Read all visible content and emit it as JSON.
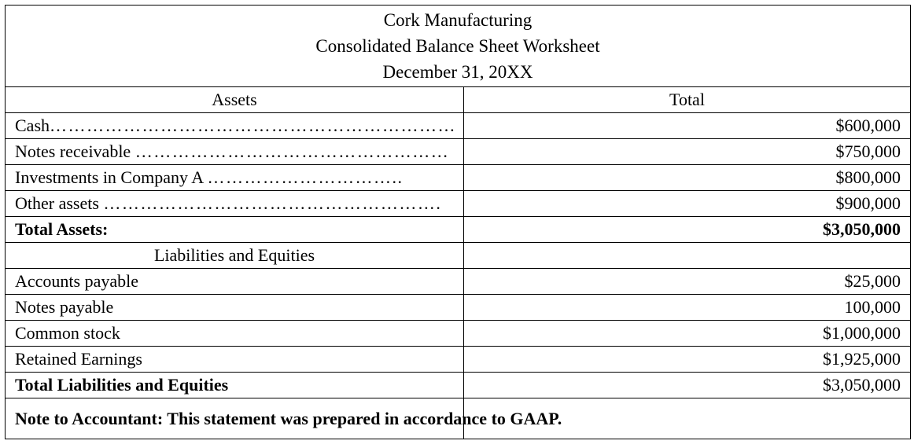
{
  "header": {
    "company": "Cork Manufacturing",
    "statement": "Consolidated  Balance Sheet Worksheet",
    "date": "December 31, 20XX"
  },
  "columns": {
    "label": "Assets",
    "total": "Total"
  },
  "assets": [
    {
      "label": "Cash",
      "leader": "…………………………………………………………",
      "value": "$600,000"
    },
    {
      "label": "Notes receivable ",
      "leader": "……………………………………………",
      "value": "$750,000"
    },
    {
      "label": "Investments in Company A ",
      "leader": "…………………………..",
      "value": "$800,000"
    },
    {
      "label": "Other assets ",
      "leader": "……………………………………………….",
      "value": "$900,000"
    }
  ],
  "total_assets": {
    "label": "Total Assets:",
    "value": "$3,050,000"
  },
  "liabilities_heading": "Liabilities  and Equities",
  "liabilities": [
    {
      "label": "Accounts payable",
      "value": "$25,000"
    },
    {
      "label": "Notes payable",
      "value": "100,000"
    },
    {
      "label": "Common stock",
      "value": "$1,000,000"
    },
    {
      "label": "Retained Earnings",
      "value": "$1,925,000"
    }
  ],
  "total_liabilities": {
    "label": "Total Liabilities  and Equities",
    "value": "$3,050,000"
  },
  "note": "Note to Accountant: This statement was prepared in accordance to GAAP."
}
